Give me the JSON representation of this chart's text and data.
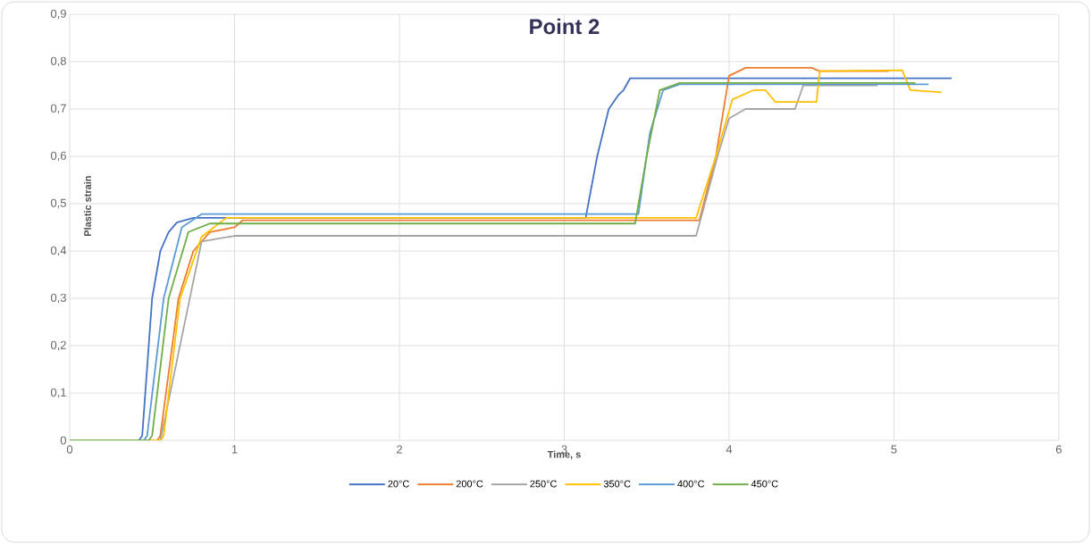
{
  "chart_data": {
    "type": "line",
    "title": "Point 2",
    "xlabel": "Time, s",
    "ylabel": "Plastic strain",
    "xlim": [
      0,
      6
    ],
    "xticks": [
      0,
      1,
      2,
      3,
      4,
      5,
      6
    ],
    "ylim": [
      0,
      0.9
    ],
    "yticks": [
      0,
      {
        "value": 0.1,
        "label": "0,1"
      },
      {
        "value": 0.2,
        "label": "0,2"
      },
      {
        "value": 0.3,
        "label": "0,3"
      },
      {
        "value": 0.4,
        "label": "0,4"
      },
      {
        "value": 0.5,
        "label": "0,5"
      },
      {
        "value": 0.6,
        "label": "0,6"
      },
      {
        "value": 0.7,
        "label": "0,7"
      },
      {
        "value": 0.8,
        "label": "0,8"
      },
      {
        "value": 0.9,
        "label": "0,9"
      }
    ],
    "grid": true,
    "legend": "bottom",
    "marker": "none",
    "line_style": "solid",
    "series": [
      {
        "name": "20°C",
        "color": "#4472c4",
        "x": [
          0,
          0.42,
          0.44,
          0.5,
          0.55,
          0.6,
          0.65,
          0.75,
          3.13,
          3.2,
          3.27,
          3.33,
          3.36,
          3.4,
          5.35
        ],
        "values": [
          0,
          0,
          0.01,
          0.3,
          0.4,
          0.44,
          0.46,
          0.47,
          0.47,
          0.6,
          0.7,
          0.73,
          0.74,
          0.765,
          0.765
        ]
      },
      {
        "name": "200°C",
        "color": "#ed7d31",
        "x": [
          0,
          0.53,
          0.55,
          0.66,
          0.75,
          0.85,
          1.0,
          1.05,
          3.82,
          3.92,
          4.0,
          4.1,
          4.5,
          4.55,
          4.97
        ],
        "values": [
          0,
          0,
          0.01,
          0.3,
          0.4,
          0.44,
          0.45,
          0.465,
          0.465,
          0.6,
          0.77,
          0.787,
          0.787,
          0.78,
          0.78
        ]
      },
      {
        "name": "250°C",
        "color": "#a5a5a5",
        "x": [
          0,
          0.55,
          0.57,
          0.67,
          0.8,
          1.0,
          3.8,
          3.93,
          4.0,
          4.1,
          4.4,
          4.45,
          4.9
        ],
        "values": [
          0,
          0,
          null,
          null,
          0.42,
          0.432,
          0.432,
          0.6,
          0.68,
          0.7,
          0.7,
          0.75,
          0.75
        ]
      },
      {
        "name": "350°C",
        "color": "#ffc000",
        "x": [
          0,
          0.55,
          0.57,
          0.67,
          0.8,
          0.95,
          3.8,
          3.92,
          4.02,
          4.15,
          4.22,
          4.28,
          4.53,
          4.55,
          5.05,
          5.1,
          5.29
        ],
        "values": [
          0,
          0,
          0.01,
          0.3,
          0.43,
          0.47,
          0.47,
          0.6,
          0.72,
          0.74,
          0.74,
          0.715,
          0.715,
          0.78,
          0.782,
          0.74,
          0.735
        ]
      },
      {
        "name": "400°C",
        "color": "#5b9bd5",
        "x": [
          0,
          0.45,
          0.47,
          0.57,
          0.68,
          0.8,
          3.45,
          3.52,
          3.6,
          3.7,
          5.21
        ],
        "values": [
          0,
          0,
          0.01,
          0.3,
          0.45,
          0.478,
          0.478,
          0.65,
          0.74,
          0.752,
          0.752
        ]
      },
      {
        "name": "450°C",
        "color": "#70ad47",
        "x": [
          0,
          0.48,
          0.5,
          0.6,
          0.72,
          0.85,
          3.43,
          3.5,
          3.58,
          3.7,
          5.13
        ],
        "values": [
          0,
          0,
          0.01,
          0.3,
          0.44,
          0.458,
          0.458,
          0.6,
          0.74,
          0.755,
          0.755
        ]
      }
    ]
  }
}
